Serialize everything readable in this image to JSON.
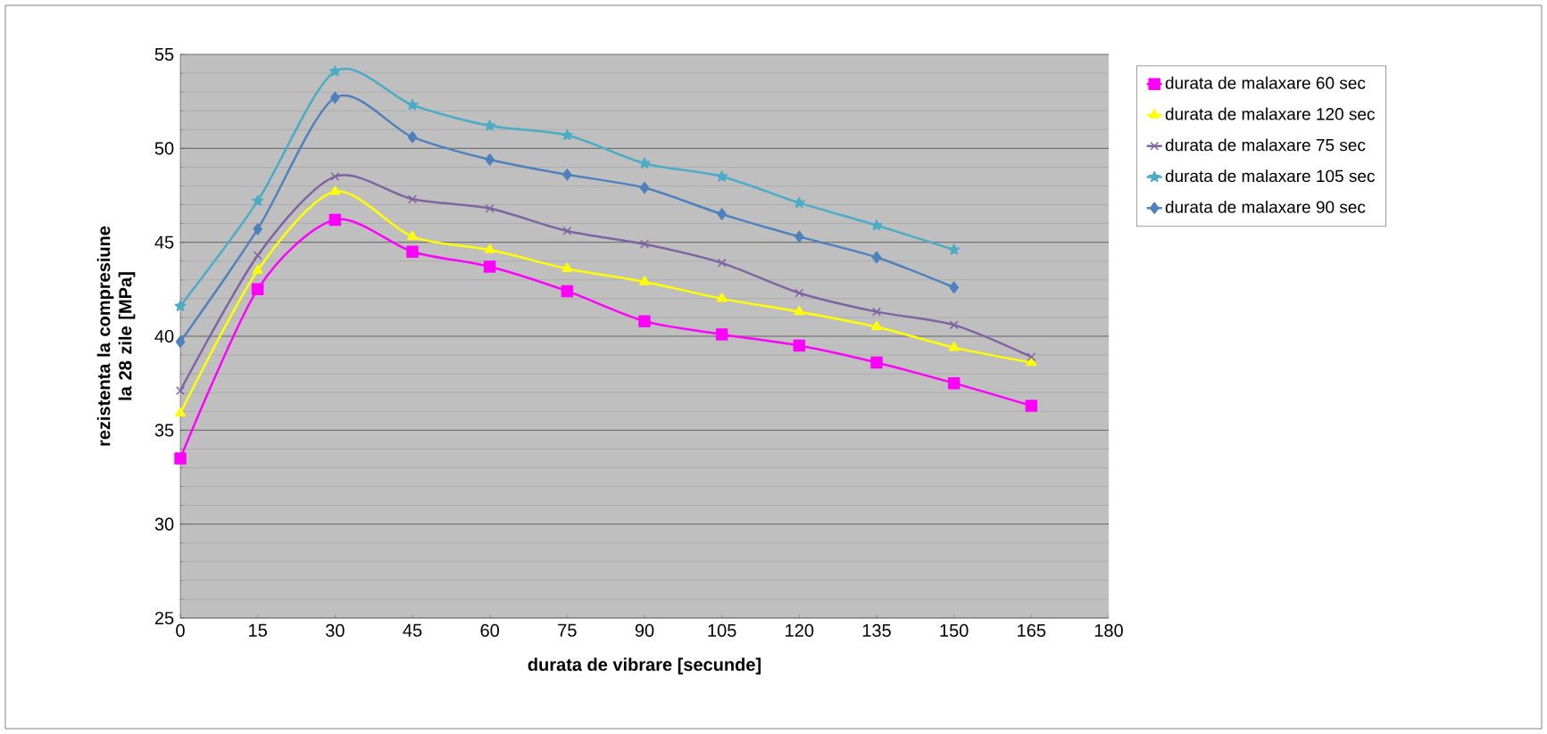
{
  "chart_data": {
    "type": "line",
    "xlabel": "durata de vibrare [secunde]",
    "ylabel": "rezistenta la compresiune la 28 zile [MPa]",
    "x": [
      0,
      15,
      30,
      45,
      60,
      75,
      90,
      105,
      120,
      135,
      150,
      165
    ],
    "xlim": [
      0,
      180
    ],
    "xticks": [
      0,
      15,
      30,
      45,
      60,
      75,
      90,
      105,
      120,
      135,
      150,
      165,
      180
    ],
    "ylim": [
      25,
      55
    ],
    "yticks": [
      25,
      30,
      35,
      40,
      45,
      50,
      55
    ],
    "grid": "y",
    "legend": "right",
    "line_style": "solid",
    "series": [
      {
        "name": "durata de malaxare 60 sec",
        "color": "#ff00ff",
        "marker": "square",
        "values": [
          33.5,
          42.5,
          46.2,
          44.5,
          43.7,
          42.4,
          40.8,
          40.1,
          39.5,
          38.6,
          37.5,
          36.3
        ]
      },
      {
        "name": "durata de malaxare 120 sec",
        "color": "#ffff00",
        "marker": "triangle",
        "values": [
          35.9,
          43.5,
          47.7,
          45.3,
          44.6,
          43.6,
          42.9,
          42.0,
          41.3,
          40.5,
          39.4,
          38.6
        ]
      },
      {
        "name": "durata de malaxare 75 sec",
        "color": "#8064a2",
        "marker": "cross",
        "values": [
          37.1,
          44.3,
          48.5,
          47.3,
          46.8,
          45.6,
          44.9,
          43.9,
          42.3,
          41.3,
          40.6,
          38.9
        ]
      },
      {
        "name": "durata de malaxare 105 sec",
        "color": "#4bacc6",
        "marker": "star",
        "values": [
          41.6,
          47.2,
          54.1,
          52.3,
          51.2,
          50.7,
          49.2,
          48.5,
          47.1,
          45.9,
          44.6,
          null
        ]
      },
      {
        "name": "durata de malaxare 90 sec",
        "color": "#4f81bd",
        "marker": "diamond",
        "values": [
          39.7,
          45.7,
          52.7,
          50.6,
          49.4,
          48.6,
          47.9,
          46.5,
          45.3,
          44.2,
          42.6,
          null
        ]
      }
    ]
  }
}
